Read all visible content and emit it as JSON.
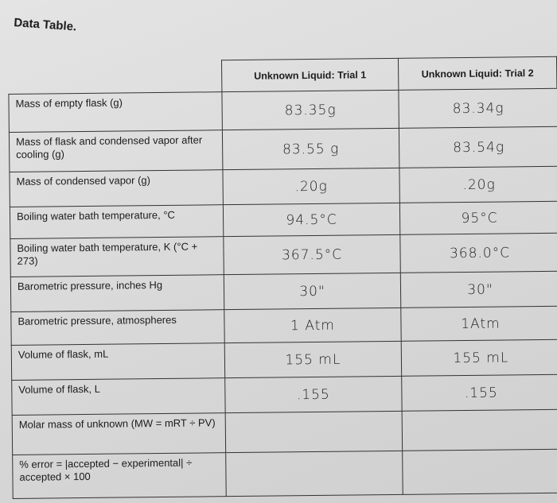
{
  "title": "Data Table.",
  "columns": [
    "",
    "Unknown Liquid: Trial 1",
    "Unknown Liquid: Trial 2"
  ],
  "rows": [
    {
      "label": "Mass of empty flask (g)",
      "trial1": "83.35g",
      "trial2": "83.34g"
    },
    {
      "label": "Mass of flask and condensed vapor after cooling (g)",
      "trial1": "83.55 g",
      "trial2": "83.54g"
    },
    {
      "label": "Mass of condensed vapor (g)",
      "trial1": ".20g",
      "trial2": ".20g"
    },
    {
      "label": "Boiling water bath temperature, °C",
      "trial1": "94.5°C",
      "trial2": "95°C"
    },
    {
      "label": "Boiling water bath temperature, K (°C + 273)",
      "trial1": "367.5°C",
      "trial2": "368.0°C"
    },
    {
      "label": "Barometric pressure, inches Hg",
      "trial1": "30\"",
      "trial2": "30\""
    },
    {
      "label": "Barometric pressure, atmospheres",
      "trial1": "1 Atm",
      "trial2": "1Atm"
    },
    {
      "label": "Volume of flask, mL",
      "trial1": "155 mL",
      "trial2": "155 mL"
    },
    {
      "label": "Volume of flask, L",
      "trial1": ".155",
      "trial2": ".155"
    },
    {
      "label": "Molar mass of unknown (MW = mRT ÷ PV)",
      "trial1": "",
      "trial2": ""
    },
    {
      "label": "% error = |accepted − experimental| ÷ accepted × 100",
      "trial1": "",
      "trial2": ""
    }
  ]
}
